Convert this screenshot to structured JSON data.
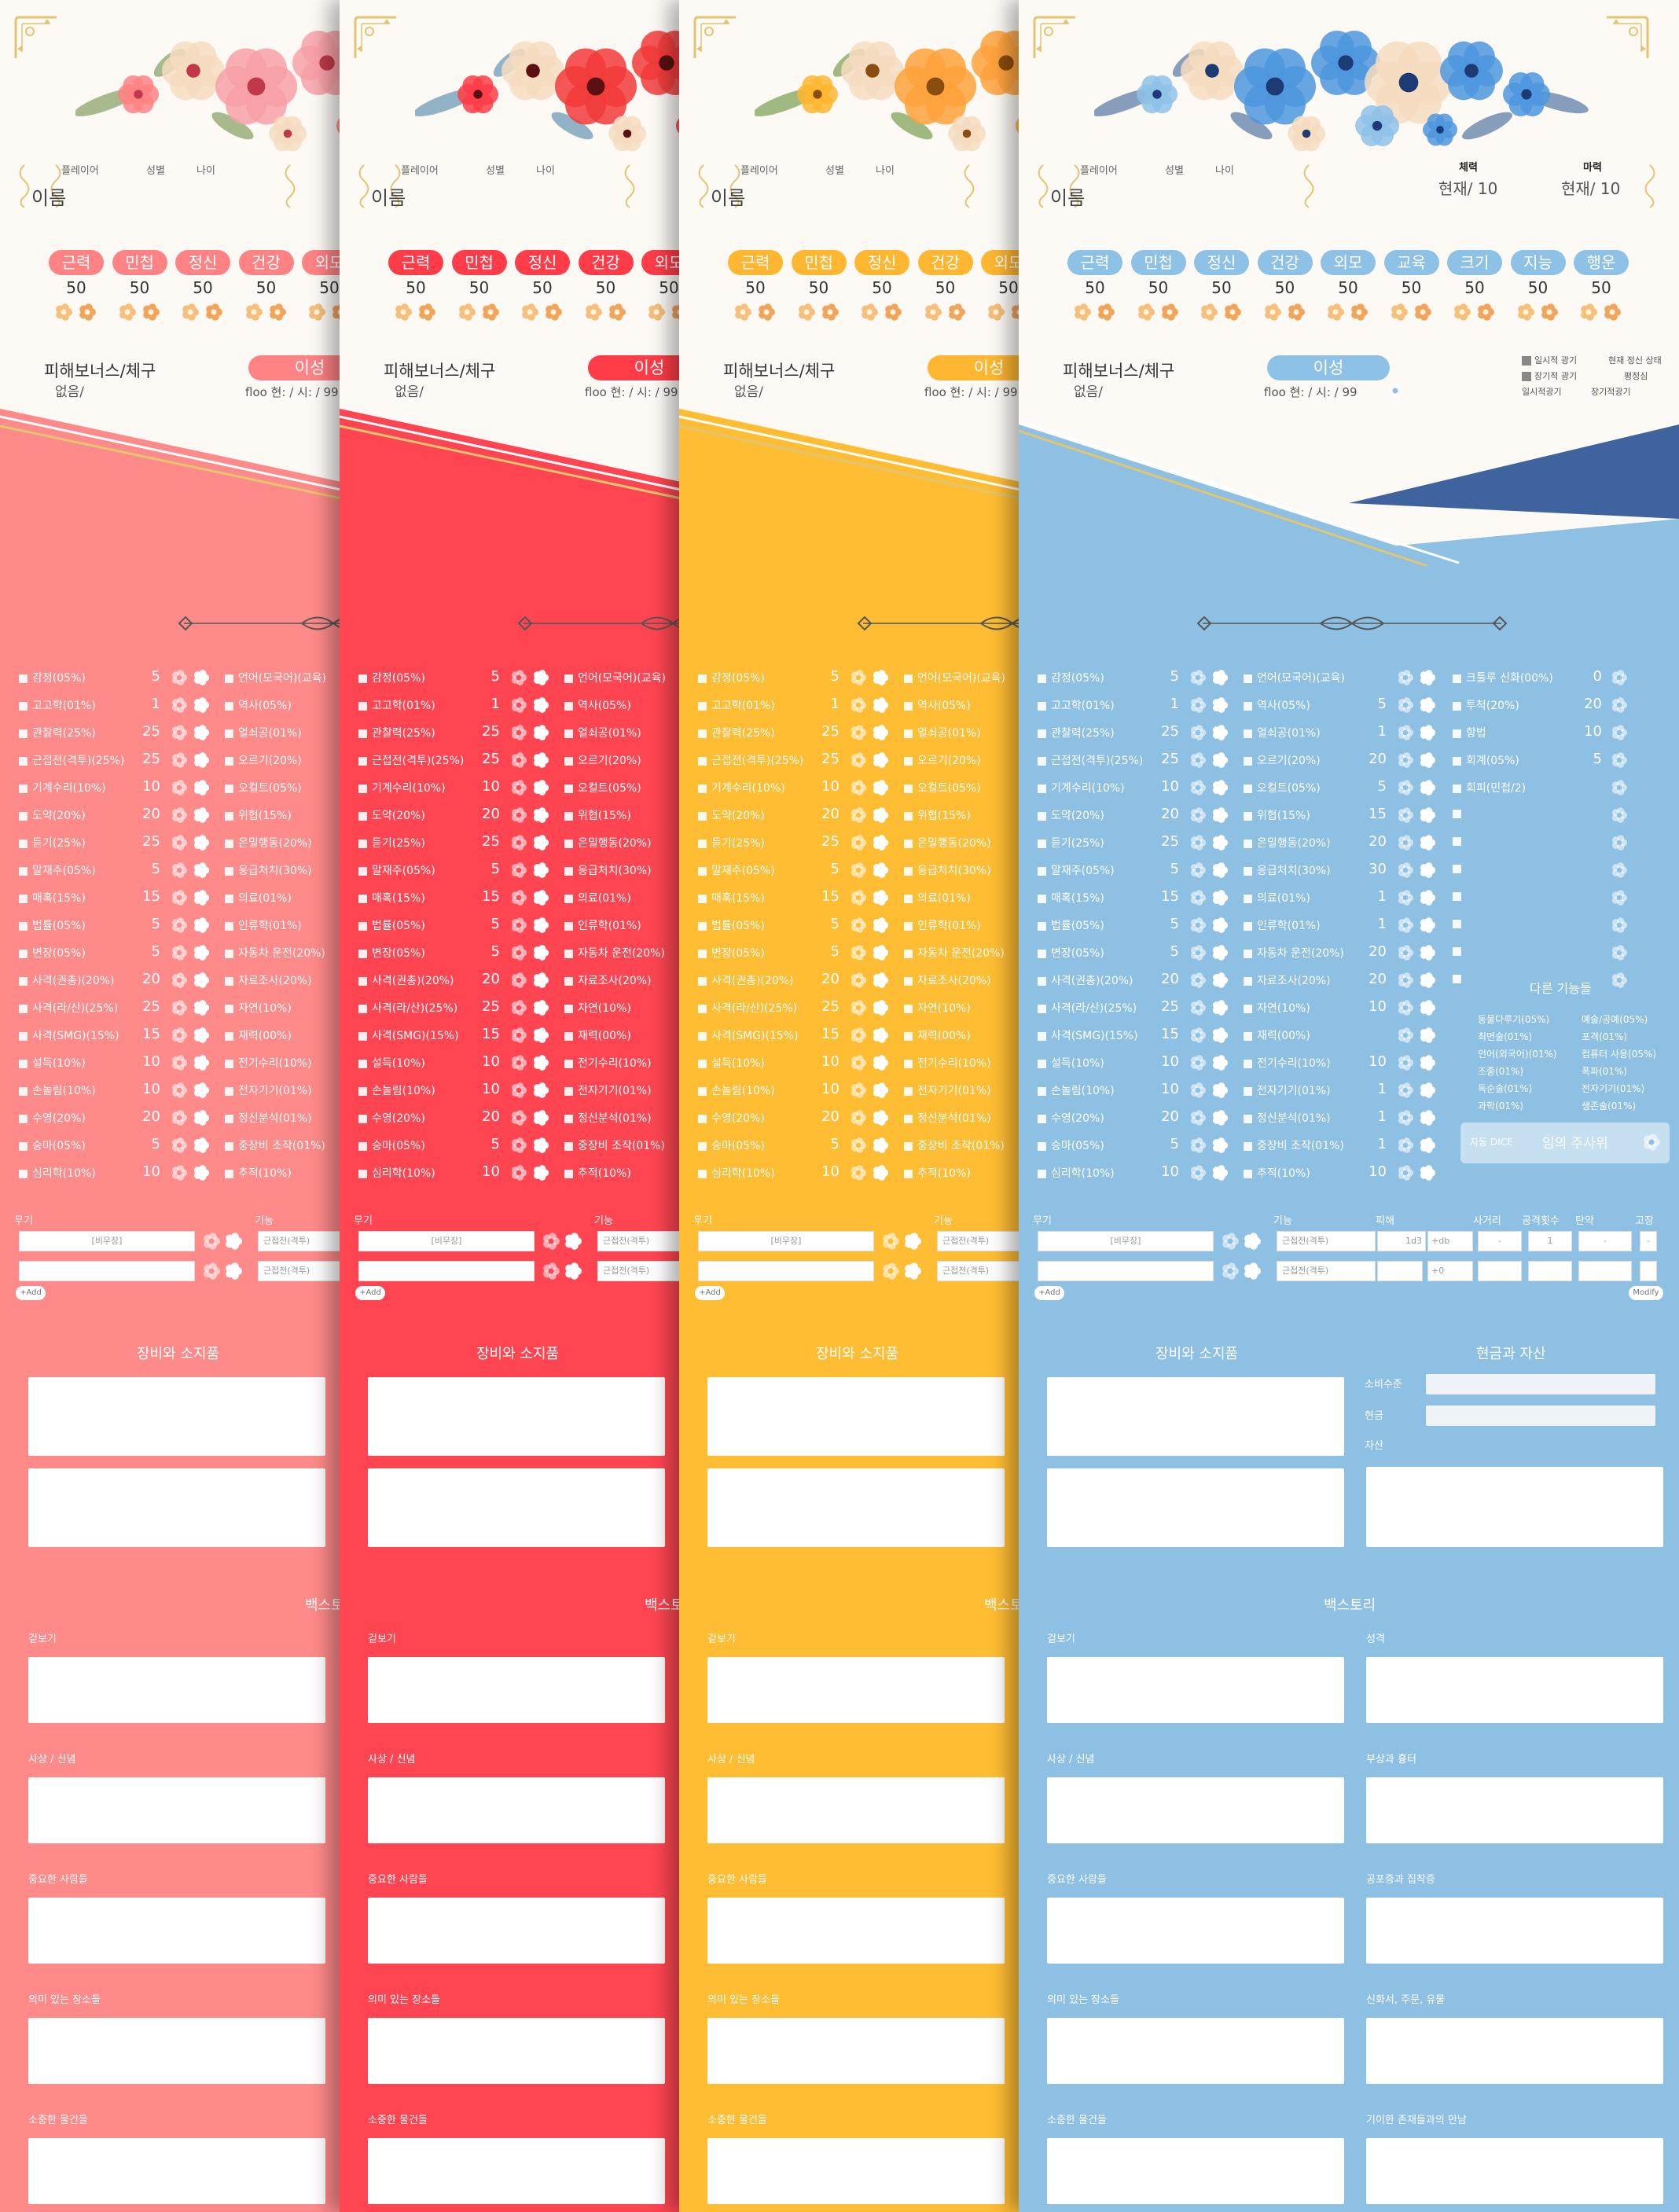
{
  "colors": {
    "coral": "#ff8a8a",
    "red": "#ff4552",
    "yellow": "#ffbd33",
    "blue": "#8dc0e3",
    "navy": "#3f639e",
    "gold": "#e2c572"
  },
  "header": {
    "player_label": "플레이어",
    "gender_label": "성별",
    "age_label": "나이",
    "name_label": "이름",
    "hp_title": "체력",
    "mp_title": "마력",
    "hp_current": "현재/ 10",
    "mp_current": "현재/ 10"
  },
  "stats": [
    {
      "label": "근력",
      "value": "50"
    },
    {
      "label": "민첩",
      "value": "50"
    },
    {
      "label": "정신",
      "value": "50"
    },
    {
      "label": "건강",
      "value": "50"
    },
    {
      "label": "외모",
      "value": "50"
    },
    {
      "label": "교육",
      "value": "50"
    },
    {
      "label": "크기",
      "value": "50"
    },
    {
      "label": "지능",
      "value": "50"
    },
    {
      "label": "행운",
      "value": "50"
    }
  ],
  "damage": {
    "title": "피해보너스/체구",
    "value": "없음/"
  },
  "sanity": {
    "reason_label": "이성",
    "line": "floo 현: / 시: / 99"
  },
  "status": {
    "temp_insanity": "일시적 광기",
    "long_insanity": "장기적 광기",
    "current_state": "현재 정신 상태",
    "normal": "평정심",
    "temp_short": "일시적광기",
    "long_short": "장기적광기"
  },
  "skills_col1": [
    {
      "name": "감정(05%)",
      "value": "5"
    },
    {
      "name": "고고학(01%)",
      "value": "1"
    },
    {
      "name": "관찰력(25%)",
      "value": "25"
    },
    {
      "name": "근접전(격투)(25%)",
      "value": "25"
    },
    {
      "name": "기계수리(10%)",
      "value": "10"
    },
    {
      "name": "도약(20%)",
      "value": "20"
    },
    {
      "name": "듣기(25%)",
      "value": "25"
    },
    {
      "name": "말재주(05%)",
      "value": "5"
    },
    {
      "name": "매혹(15%)",
      "value": "15"
    },
    {
      "name": "법률(05%)",
      "value": "5"
    },
    {
      "name": "변장(05%)",
      "value": "5"
    },
    {
      "name": "사격(권총)(20%)",
      "value": "20"
    },
    {
      "name": "사격(라/산)(25%)",
      "value": "25"
    },
    {
      "name": "사격(SMG)(15%)",
      "value": "15"
    },
    {
      "name": "설득(10%)",
      "value": "10"
    },
    {
      "name": "손놀림(10%)",
      "value": "10"
    },
    {
      "name": "수영(20%)",
      "value": "20"
    },
    {
      "name": "승마(05%)",
      "value": "5"
    },
    {
      "name": "심리학(10%)",
      "value": "10"
    }
  ],
  "skills_col2": [
    {
      "name": "언어(모국어)(교육)",
      "value": ""
    },
    {
      "name": "역사(05%)",
      "value": "5"
    },
    {
      "name": "열쇠공(01%)",
      "value": "1"
    },
    {
      "name": "오르기(20%)",
      "value": "20"
    },
    {
      "name": "오컬트(05%)",
      "value": "5"
    },
    {
      "name": "위협(15%)",
      "value": "15"
    },
    {
      "name": "은밀행동(20%)",
      "value": "20"
    },
    {
      "name": "응급처치(30%)",
      "value": "30"
    },
    {
      "name": "의료(01%)",
      "value": "1"
    },
    {
      "name": "인류학(01%)",
      "value": "1"
    },
    {
      "name": "자동차 운전(20%)",
      "value": "20"
    },
    {
      "name": "자료조사(20%)",
      "value": "20"
    },
    {
      "name": "자연(10%)",
      "value": "10"
    },
    {
      "name": "재력(00%)",
      "value": ""
    },
    {
      "name": "전기수리(10%)",
      "value": "10"
    },
    {
      "name": "전자기기(01%)",
      "value": "1"
    },
    {
      "name": "정신분석(01%)",
      "value": "1"
    },
    {
      "name": "중장비 조작(01%)",
      "value": "1"
    },
    {
      "name": "추적(10%)",
      "value": "10"
    }
  ],
  "skills_col3": [
    {
      "name": "크툴루 신화(00%)",
      "value": "0"
    },
    {
      "name": "투척(20%)",
      "value": "20"
    },
    {
      "name": "항법",
      "value": "10"
    },
    {
      "name": "회계(05%)",
      "value": "5"
    },
    {
      "name": "회피(민첩/2)",
      "value": ""
    }
  ],
  "other_skills": {
    "title": "다른 기능들",
    "left": [
      "동물다루기(05%)",
      "최면술(01%)",
      "언어(외국어)(01%)",
      "조종(01%)",
      "독순술(01%)",
      "과학(01%)"
    ],
    "right": [
      "예술/공예(05%)",
      "포격(01%)",
      "컴퓨터 사용(05%)",
      "폭파(01%)",
      "전자기기(01%)",
      "생존술(01%)"
    ]
  },
  "dice": {
    "label": "자동 DICE",
    "placeholder": "임의 주사위"
  },
  "weapons": {
    "weapon_label": "무기",
    "skill_label": "기능",
    "damage_label": "피해",
    "range_label": "사거리",
    "attacks_label": "공격횟수",
    "ammo_label": "탄약",
    "malfunction_label": "고장",
    "unarmed": "[비무장]",
    "skill_value": "근접전(격투)",
    "damage_value": "1d3",
    "db_value": "+db",
    "attacks_value": "1",
    "dash": "-",
    "zero": "+0",
    "add_label": "+Add",
    "modify_label": "Modify"
  },
  "equipment": {
    "title": "장비와 소지품"
  },
  "cash": {
    "title": "현금과 자산",
    "spending": "소비수준",
    "cash": "현금",
    "assets": "자산"
  },
  "backstory": {
    "title": "백스토리",
    "appearance": "겉보기",
    "ideology": "사상 / 신념",
    "significant_people": "중요한 사람들",
    "meaningful_locations": "의미 있는 장소들",
    "treasured_possessions": "소중한 물건들",
    "traits": "성격",
    "injuries": "부상과 흉터",
    "phobias": "공포증과 집착증",
    "arcane_tomes": "신화서, 주문, 유물",
    "encounters": "기이한 존재들과의 만남"
  }
}
